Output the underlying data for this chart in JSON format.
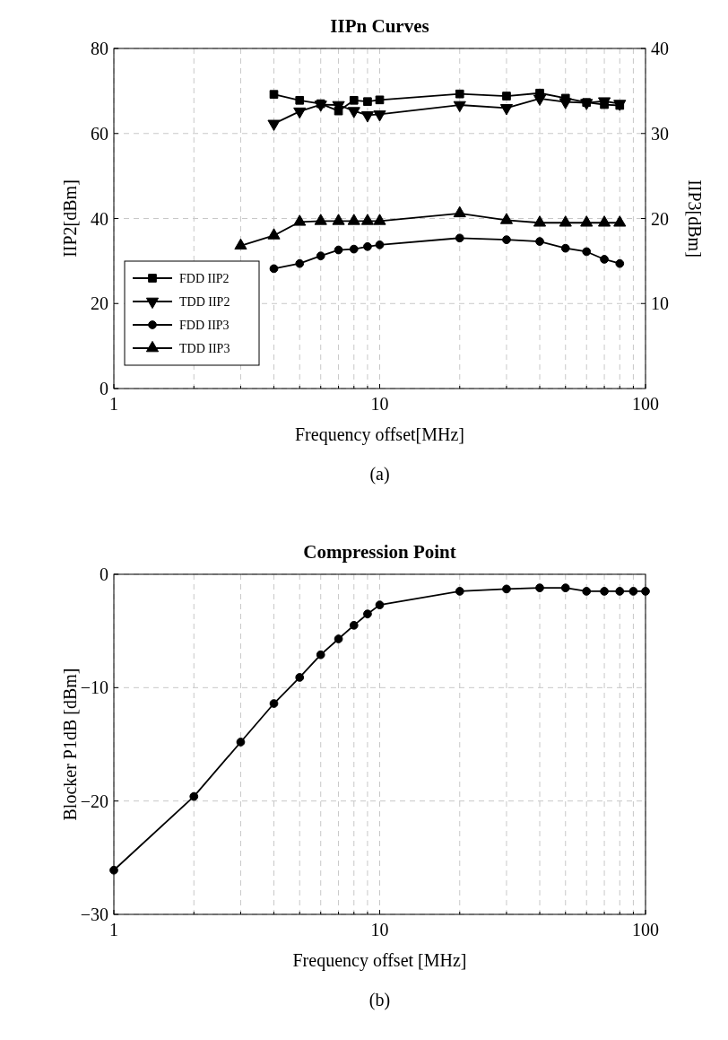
{
  "chart_data": [
    {
      "type": "line",
      "title": "IIPn Curves",
      "xlabel": "Frequency offset[MHz]",
      "ylabel": "IIP2[dBm]",
      "y2label": "IIP3[dBm]",
      "log": "x",
      "xlim": [
        1,
        100
      ],
      "xticks": [
        1,
        {
          "value": 2,
          "label": null
        },
        {
          "value": 3,
          "label": null
        },
        {
          "value": 4,
          "label": null
        },
        {
          "value": 5,
          "label": null
        },
        {
          "value": 6,
          "label": null
        },
        {
          "value": 7,
          "label": null
        },
        {
          "value": 8,
          "label": null
        },
        {
          "value": 9,
          "label": null
        },
        10,
        {
          "value": 20,
          "label": null
        },
        {
          "value": 30,
          "label": null
        },
        {
          "value": 40,
          "label": null
        },
        {
          "value": 50,
          "label": null
        },
        {
          "value": 60,
          "label": null
        },
        {
          "value": 70,
          "label": null
        },
        {
          "value": 80,
          "label": null
        },
        {
          "value": 90,
          "label": null
        },
        100
      ],
      "ylim": [
        0,
        80
      ],
      "yticks": [
        0,
        20,
        40,
        60,
        80
      ],
      "y2lim": [
        0,
        40
      ],
      "y2ticks": [
        10,
        20,
        30,
        40
      ],
      "grid": true,
      "legend": "bottom left",
      "line_style": "solid",
      "annotations": [
        "(a)"
      ],
      "series": [
        {
          "name": "FDD IIP2",
          "color": "#000000",
          "marker": "square",
          "x": [
            4,
            5,
            6,
            7,
            8,
            9,
            10,
            20,
            30,
            40,
            50,
            60,
            70,
            80
          ],
          "values": [
            69.2,
            67.8,
            67.0,
            65.3,
            67.8,
            67.5,
            67.9,
            69.3,
            68.8,
            69.5,
            68.3,
            67.3,
            66.8,
            66.6
          ]
        },
        {
          "name": "TDD IIP2",
          "color": "#000000",
          "marker": "triangle-down",
          "x": [
            4,
            5,
            6,
            7,
            8,
            9,
            10,
            20,
            30,
            40,
            50,
            60,
            70,
            80
          ],
          "values": [
            62.3,
            65.2,
            66.8,
            66.7,
            65.3,
            64.3,
            64.5,
            66.7,
            66.0,
            68.2,
            67.4,
            67.2,
            67.6,
            67.0
          ]
        },
        {
          "name": "FDD IIP3",
          "color": "#000000",
          "marker": "circle",
          "axis": "y2",
          "x": [
            4,
            5,
            6,
            7,
            8,
            9,
            10,
            20,
            30,
            40,
            50,
            60,
            70,
            80
          ],
          "values": [
            14.1,
            14.7,
            15.6,
            16.3,
            16.4,
            16.7,
            16.9,
            17.7,
            17.5,
            17.3,
            16.5,
            16.1,
            15.2,
            14.7
          ]
        },
        {
          "name": "TDD IIP3",
          "color": "#000000",
          "marker": "triangle",
          "axis": "y2",
          "x": [
            3,
            4,
            5,
            6,
            7,
            8,
            9,
            10,
            20,
            30,
            40,
            50,
            60,
            70,
            80
          ],
          "values": [
            16.8,
            18.0,
            19.6,
            19.7,
            19.7,
            19.7,
            19.7,
            19.7,
            20.6,
            19.8,
            19.5,
            19.5,
            19.5,
            19.5,
            19.5
          ]
        }
      ]
    },
    {
      "type": "line",
      "title": "Compression Point",
      "xlabel": "Frequency offset [MHz]",
      "ylabel": "Blocker P1dB [dBm]",
      "log": "x",
      "xlim": [
        1,
        100
      ],
      "xticks": [
        1,
        {
          "value": 2,
          "label": null
        },
        {
          "value": 3,
          "label": null
        },
        {
          "value": 4,
          "label": null
        },
        {
          "value": 5,
          "label": null
        },
        {
          "value": 6,
          "label": null
        },
        {
          "value": 7,
          "label": null
        },
        {
          "value": 8,
          "label": null
        },
        {
          "value": 9,
          "label": null
        },
        10,
        {
          "value": 20,
          "label": null
        },
        {
          "value": 30,
          "label": null
        },
        {
          "value": 40,
          "label": null
        },
        {
          "value": 50,
          "label": null
        },
        {
          "value": 60,
          "label": null
        },
        {
          "value": 70,
          "label": null
        },
        {
          "value": 80,
          "label": null
        },
        {
          "value": 90,
          "label": null
        },
        100
      ],
      "ylim": [
        -30,
        0
      ],
      "yticks": [
        {
          "value": -30,
          "label": "−30"
        },
        {
          "value": -20,
          "label": "−20"
        },
        {
          "value": -10,
          "label": "−10"
        },
        0
      ],
      "grid": true,
      "line_style": "solid",
      "marker": "circle",
      "annotations": [
        "(b)"
      ],
      "series": [
        {
          "color": "#000000",
          "x": [
            1,
            2,
            3,
            4,
            5,
            6,
            7,
            8,
            9,
            10,
            20,
            30,
            40,
            50,
            60,
            70,
            80,
            90,
            100
          ],
          "values": [
            -26.1,
            -19.6,
            -14.8,
            -11.4,
            -9.1,
            -7.1,
            -5.7,
            -4.5,
            -3.5,
            -2.7,
            -1.5,
            -1.3,
            -1.2,
            -1.2,
            -1.5,
            -1.5,
            -1.5,
            -1.5,
            -1.5
          ]
        }
      ]
    }
  ]
}
